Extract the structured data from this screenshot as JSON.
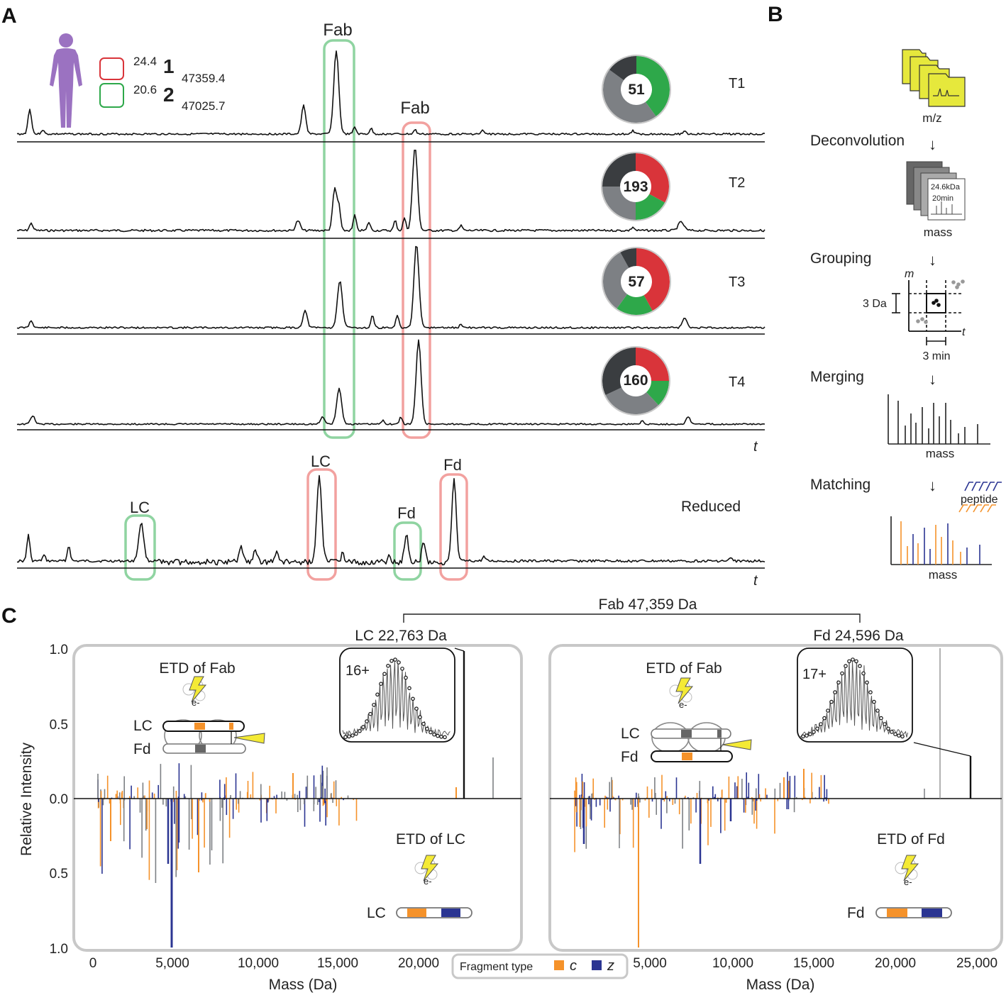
{
  "panels": {
    "A": "A",
    "B": "B",
    "C": "C"
  },
  "colors": {
    "green": "#2ea84a",
    "red": "#d9343a",
    "green_box": "#8fd4a1",
    "red_box": "#f2a19f",
    "dark": "#3a3d40",
    "grey": "#7d8084",
    "c_orange": "#f5922a",
    "z_blue": "#2b3592",
    "purple": "#9b72c1",
    "yellow": "#f4ea35"
  },
  "panel_a": {
    "legend": {
      "red": {
        "rt": "24.4",
        "id": "1",
        "mass": "47359.4"
      },
      "green": {
        "rt": "20.6",
        "id": "2",
        "mass": "47025.7"
      }
    },
    "fab_green_label": "Fab",
    "fab_red_label": "Fab",
    "traces": [
      {
        "label": "T1",
        "count": "51",
        "donut": {
          "green": 0.4,
          "red": 0.0,
          "grey": 0.45,
          "dark": 0.15
        }
      },
      {
        "label": "T2",
        "count": "193",
        "donut": {
          "green": 0.17,
          "red": 0.33,
          "grey": 0.25,
          "dark": 0.25
        }
      },
      {
        "label": "T3",
        "count": "57",
        "donut": {
          "green": 0.18,
          "red": 0.42,
          "grey": 0.32,
          "dark": 0.08
        }
      },
      {
        "label": "T4",
        "count": "160",
        "donut": {
          "green": 0.13,
          "red": 0.25,
          "grey": 0.3,
          "dark": 0.32
        }
      }
    ],
    "axis_t": "t",
    "reduced": {
      "label": "Reduced",
      "lc_green": "LC",
      "lc_red": "LC",
      "fd_green": "Fd",
      "fd_red": "Fd",
      "axis_t": "t"
    }
  },
  "panel_b": {
    "mz_label": "m/z",
    "deconvolution": "Deconvolution",
    "card_lines": [
      "24.6kDa",
      "20min"
    ],
    "mass1": "mass",
    "grouping": "Grouping",
    "axis_m": "m",
    "axis_t": "t",
    "da": "3 Da",
    "min": "3 min",
    "merging": "Merging",
    "mass2": "mass",
    "matching": "Matching",
    "peptide": "peptide",
    "mass3": "mass"
  },
  "panel_c": {
    "fab_bracket": "Fab 47,359 Da",
    "lc_title": "LC  22,763 Da",
    "fd_title": "Fd  24,596 Da",
    "y_label": "Relative Intensity",
    "y_ticks": [
      "1.0",
      "0.5",
      "0.0",
      "0.5",
      "1.0"
    ],
    "x_ticks": [
      "0",
      "5,000",
      "10,000",
      "15,000",
      "20,000",
      "25,000"
    ],
    "x_label": "Mass (Da)",
    "left": {
      "etd_top": "ETD of Fab",
      "etd_bottom": "ETD of LC",
      "charge": "16+",
      "chain_lc": "LC",
      "chain_fd": "Fd",
      "bottom_chain": "LC"
    },
    "right": {
      "etd_top": "ETD of Fab",
      "etd_bottom": "ETD of Fd",
      "charge": "17+",
      "chain_lc": "LC",
      "chain_fd": "Fd",
      "bottom_chain": "Fd"
    },
    "e_label": "e-",
    "legend": {
      "title": "Fragment type",
      "c": "c",
      "z": "z"
    }
  }
}
